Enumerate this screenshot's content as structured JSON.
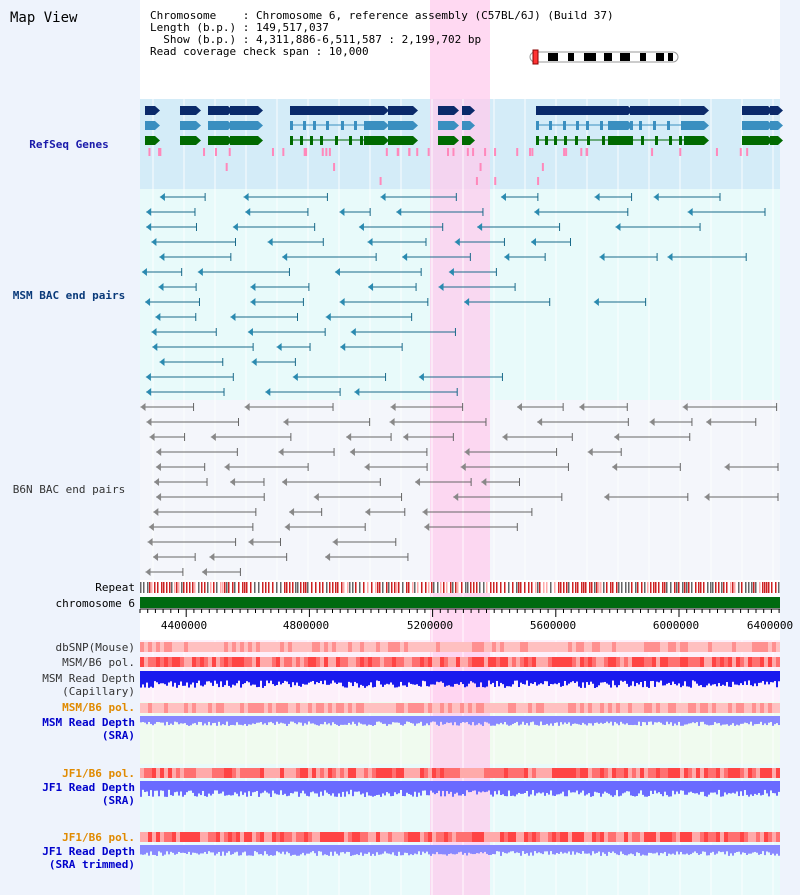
{
  "window": {
    "title": "Map View"
  },
  "header": {
    "chromosome_label": "Chromosome",
    "chromosome_value": "Chromosome 6, reference assembly (C57BL/6J) (Build 37)",
    "length_label": "Length (b.p.)",
    "length_value": "149,517,037",
    "show_label": "Show (b.p.)",
    "show_value": "4,311,886-6,511,587 : 2,199,702 bp",
    "coverage_label": "Read coverage check span",
    "coverage_value": "10,000"
  },
  "tracks": {
    "refseq": "RefSeq Genes",
    "msm_bac": "MSM BAC end pairs",
    "b6n_bac": "B6N BAC end pairs",
    "repeat": "Repeat",
    "chromosome": "chromosome 6",
    "dbsnp": "dbSNP(Mouse)",
    "msm_b6_pol": "MSM/B6 pol.",
    "msm_depth_cap_1": "MSM Read Depth",
    "msm_depth_cap_2": "(Capillary)",
    "msm_b6_pol2": "MSM/B6 pol.",
    "msm_depth_sra_1": "MSM Read Depth",
    "msm_depth_sra_2": "(SRA)",
    "jf1_b6_pol": "JF1/B6 pol.",
    "jf1_depth_sra_1": "JF1 Read Depth",
    "jf1_depth_sra_2": "(SRA)",
    "jf1_b6_pol2": "JF1/B6 pol.",
    "jf1_depth_trim_1": "JF1 Read Depth",
    "jf1_depth_trim_2": "(SRA trimmed)"
  },
  "axis": {
    "ticks": [
      "4400000",
      "4800000",
      "5200000",
      "5600000",
      "6000000",
      "6400000"
    ]
  },
  "colors": {
    "refseq_label": "#1a1aaa",
    "msm_label": "#0a3a7a",
    "pol_label": "#e08a00",
    "depth_label": "#0000cc",
    "highlight": "#ffccee"
  }
}
